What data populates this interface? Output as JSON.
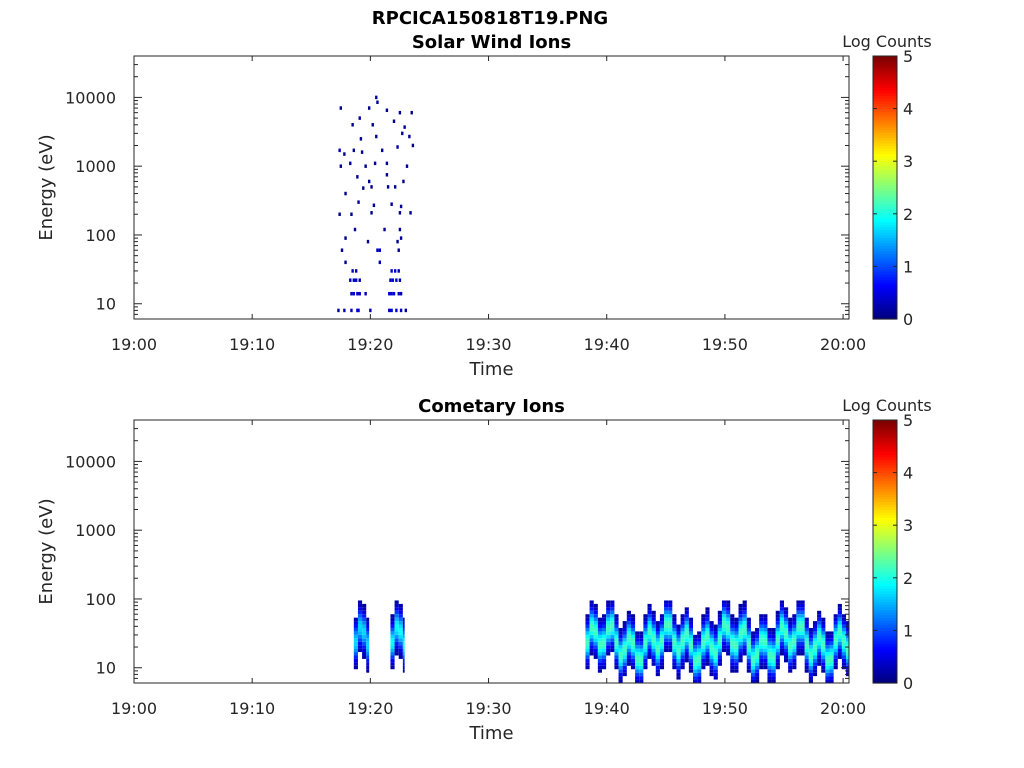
{
  "figure_title": "RPCICA150818T19.PNG",
  "colors": {
    "background": "#ffffff",
    "axis": "#262626",
    "colormap": [
      "#00007f",
      "#0000ff",
      "#007fff",
      "#00ffff",
      "#7fff7f",
      "#ffff00",
      "#ff7f00",
      "#ff0000",
      "#7f0000"
    ]
  },
  "chart_data": [
    {
      "type": "heatmap",
      "title": "Solar Wind Ions",
      "xlabel": "Time",
      "ylabel": "Energy (eV)",
      "x_ticks": [
        "19:00",
        "19:10",
        "19:20",
        "19:30",
        "19:40",
        "19:50",
        "20:00"
      ],
      "x_range_minutes": [
        0,
        60.5
      ],
      "y_scale": "log",
      "y_ticks": [
        "10",
        "100",
        "1000",
        "10000"
      ],
      "y_range": [
        6,
        40000
      ],
      "colorbar": {
        "label": "Log Counts",
        "ticks": [
          "0",
          "1",
          "2",
          "3",
          "4",
          "5"
        ],
        "range": [
          0,
          5
        ]
      },
      "cells": [
        [
          17.3,
          8,
          0.1
        ],
        [
          17.8,
          8,
          0.3
        ],
        [
          18.4,
          8,
          0.3
        ],
        [
          18.9,
          8,
          0.4
        ],
        [
          19.0,
          8,
          0.4
        ],
        [
          20.0,
          8,
          0.2
        ],
        [
          21.6,
          8,
          0.3
        ],
        [
          21.8,
          8,
          0.4
        ],
        [
          22.2,
          8,
          0.4
        ],
        [
          22.6,
          8,
          0.3
        ],
        [
          23.0,
          8,
          0.1
        ],
        [
          18.4,
          14,
          0.3
        ],
        [
          18.6,
          14,
          0.4
        ],
        [
          18.9,
          14,
          0.4
        ],
        [
          19.1,
          14,
          0.3
        ],
        [
          19.6,
          14,
          0.2
        ],
        [
          21.6,
          14,
          0.4
        ],
        [
          21.8,
          14,
          0.4
        ],
        [
          22.0,
          14,
          0.5
        ],
        [
          22.4,
          14,
          0.4
        ],
        [
          22.6,
          14,
          0.2
        ],
        [
          18.3,
          22,
          0.2
        ],
        [
          18.6,
          22,
          0.4
        ],
        [
          18.8,
          22,
          0.3
        ],
        [
          19.1,
          22,
          0.2
        ],
        [
          21.7,
          22,
          0.3
        ],
        [
          21.9,
          22,
          0.5
        ],
        [
          22.2,
          22,
          0.4
        ],
        [
          22.5,
          22,
          0.3
        ],
        [
          18.5,
          30,
          0.3
        ],
        [
          18.8,
          30,
          0.2
        ],
        [
          21.8,
          30,
          0.3
        ],
        [
          22.1,
          30,
          0.4
        ],
        [
          22.4,
          30,
          0.2
        ],
        [
          17.9,
          40,
          0.1
        ],
        [
          20.8,
          40,
          0.2
        ],
        [
          17.6,
          60,
          0.1
        ],
        [
          20.6,
          60,
          0.3
        ],
        [
          20.8,
          60,
          0.3
        ],
        [
          22.4,
          60,
          0.1
        ],
        [
          17.9,
          90,
          0.1
        ],
        [
          19.8,
          80,
          0.1
        ],
        [
          22.3,
          80,
          0.1
        ],
        [
          22.6,
          90,
          0.1
        ],
        [
          18.7,
          120,
          0.1
        ],
        [
          21.2,
          120,
          0.1
        ],
        [
          22.5,
          120,
          0.1
        ],
        [
          17.4,
          200,
          0.1
        ],
        [
          18.4,
          200,
          0.1
        ],
        [
          20.1,
          210,
          0.1
        ],
        [
          20.3,
          270,
          0.1
        ],
        [
          22.5,
          210,
          0.1
        ],
        [
          23.4,
          210,
          0.1
        ],
        [
          19.0,
          300,
          0.1
        ],
        [
          21.8,
          280,
          0.1
        ],
        [
          22.6,
          260,
          0.1
        ],
        [
          17.9,
          400,
          0.1
        ],
        [
          19.4,
          480,
          0.1
        ],
        [
          20.1,
          500,
          0.1
        ],
        [
          21.5,
          500,
          0.1
        ],
        [
          22.1,
          500,
          0.1
        ],
        [
          18.9,
          700,
          0.1
        ],
        [
          19.9,
          600,
          0.1
        ],
        [
          21.4,
          750,
          0.1
        ],
        [
          22.8,
          600,
          0.1
        ],
        [
          17.5,
          1000,
          0.1
        ],
        [
          18.3,
          1100,
          0.1
        ],
        [
          19.6,
          1000,
          0.1
        ],
        [
          20.4,
          1100,
          0.1
        ],
        [
          21.4,
          1100,
          0.1
        ],
        [
          23.1,
          1000,
          0.1
        ],
        [
          17.4,
          1700,
          0.2
        ],
        [
          17.8,
          1500,
          0.1
        ],
        [
          18.6,
          1700,
          0.1
        ],
        [
          19.3,
          1600,
          0.1
        ],
        [
          21.0,
          1700,
          0.1
        ],
        [
          22.3,
          1900,
          0.2
        ],
        [
          23.6,
          2000,
          0.1
        ],
        [
          19.2,
          2500,
          0.1
        ],
        [
          20.5,
          2700,
          0.1
        ],
        [
          22.7,
          3000,
          0.1
        ],
        [
          23.3,
          2700,
          0.1
        ],
        [
          18.5,
          4000,
          0.1
        ],
        [
          19.1,
          5000,
          0.1
        ],
        [
          20.2,
          4000,
          0.1
        ],
        [
          22.0,
          4500,
          0.1
        ],
        [
          22.9,
          3700,
          0.1
        ],
        [
          17.5,
          7000,
          0.1
        ],
        [
          19.9,
          7000,
          0.1
        ],
        [
          21.4,
          6500,
          0.1
        ],
        [
          22.5,
          6000,
          0.1
        ],
        [
          23.5,
          6000,
          0.1
        ],
        [
          20.5,
          10000,
          0.1
        ],
        [
          20.6,
          8500,
          0.1
        ]
      ]
    },
    {
      "type": "heatmap",
      "title": "Cometary Ions",
      "xlabel": "Time",
      "ylabel": "Energy (eV)",
      "x_ticks": [
        "19:00",
        "19:10",
        "19:20",
        "19:30",
        "19:40",
        "19:50",
        "20:00"
      ],
      "x_range_minutes": [
        0,
        60.5
      ],
      "y_scale": "log",
      "y_ticks": [
        "10",
        "100",
        "1000",
        "10000"
      ],
      "y_range": [
        6,
        40000
      ],
      "colorbar": {
        "label": "Log Counts",
        "ticks": [
          "0",
          "1",
          "2",
          "3",
          "4",
          "5"
        ],
        "range": [
          0,
          5
        ]
      },
      "intervals": [
        {
          "t0": 18.6,
          "t1": 19.9,
          "peak_energy": 22,
          "peak_counts": 1.7
        },
        {
          "t0": 21.7,
          "t1": 22.9,
          "peak_energy": 22,
          "peak_counts": 1.9
        },
        {
          "t0": 38.2,
          "t1": 60.5,
          "peak_energy": 22,
          "peak_counts": 2.2
        }
      ]
    }
  ]
}
